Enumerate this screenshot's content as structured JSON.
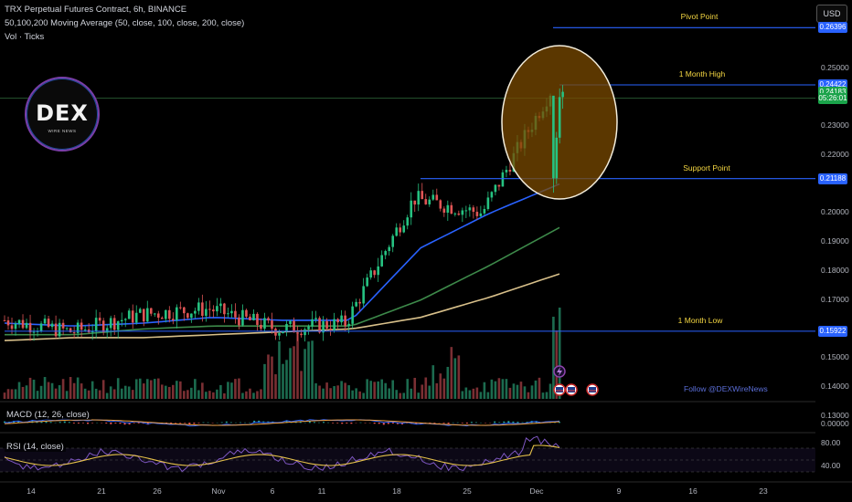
{
  "header": {
    "title": "TRX Perpetual Futures Contract, 6h, BINANCE",
    "indicator": "50,100,200 Moving Average (50, close, 100, close, 200, close)",
    "volume": "Vol · Ticks"
  },
  "currency_button": "USD",
  "logo": {
    "word": "DEX",
    "sub": "WIRE NEWS"
  },
  "follow_text": "Follow @DEXWireNews",
  "colors": {
    "bull": "#26c281",
    "bear": "#e05555",
    "ma50": "#2962ff",
    "ma100": "#3d8a4a",
    "ma200": "#d8c08a",
    "level_line": "#2962ff",
    "annotation": "#f5d742",
    "circle_fill": "#7a4a00",
    "price_tag": "#1aa34a"
  },
  "price_axis": {
    "ticks": [
      "0.25000",
      "0.23000",
      "0.22000",
      "0.20000",
      "0.19000",
      "0.18000",
      "0.17000",
      "0.15000",
      "0.14000",
      "0.13000"
    ],
    "tags": [
      {
        "label": "0.26396",
        "value": 0.26396,
        "color": "#2962ff"
      },
      {
        "label": "0.24422",
        "value": 0.24422,
        "color": "#2962ff"
      },
      {
        "label": "0.24183",
        "value": 0.24183,
        "color": "#1aa34a"
      },
      {
        "label": "05:26:01",
        "value": 0.2396,
        "color": "#1aa34a"
      },
      {
        "label": "0.21188",
        "value": 0.21188,
        "color": "#2962ff"
      },
      {
        "label": "0.15922",
        "value": 0.15922,
        "color": "#2962ff"
      }
    ]
  },
  "time_axis": [
    "14",
    "21",
    "26",
    "Nov",
    "6",
    "11",
    "18",
    "25",
    "Dec",
    "9",
    "16",
    "23"
  ],
  "panes": {
    "macd": {
      "label": "MACD (12, 26, close)",
      "ticks": [
        "0.00000"
      ]
    },
    "rsi": {
      "label": "RSI (14, close)",
      "ticks": [
        "80.00",
        "40.00"
      ]
    }
  },
  "annotations": [
    {
      "text": "Pivot Point",
      "value": 0.26396
    },
    {
      "text": "1 Month High",
      "value": 0.24422
    },
    {
      "text": "Support Point",
      "value": 0.21188
    },
    {
      "text": "1 Month Low",
      "value": 0.15922
    }
  ],
  "chart_data": {
    "type": "line",
    "title": "TRX Perpetual Futures Contract, 6h, BINANCE",
    "x": [
      "14",
      "21",
      "26",
      "Nov",
      "6",
      "11",
      "18",
      "25",
      "Dec"
    ],
    "series": [
      {
        "name": "close",
        "values": [
          0.163,
          0.159,
          0.165,
          0.167,
          0.16,
          0.162,
          0.205,
          0.2,
          0.242
        ]
      },
      {
        "name": "MA 50",
        "values": [
          0.162,
          0.161,
          0.162,
          0.164,
          0.163,
          0.163,
          0.188,
          0.2,
          0.21
        ]
      },
      {
        "name": "MA 100",
        "values": [
          0.158,
          0.158,
          0.16,
          0.161,
          0.161,
          0.161,
          0.17,
          0.182,
          0.195
        ]
      },
      {
        "name": "MA 200",
        "values": [
          0.156,
          0.157,
          0.157,
          0.158,
          0.159,
          0.16,
          0.164,
          0.171,
          0.179
        ]
      }
    ],
    "levels": [
      {
        "label": "Pivot Point",
        "value": 0.26396
      },
      {
        "label": "1 Month High",
        "value": 0.24422
      },
      {
        "label": "Support Point",
        "value": 0.21188
      },
      {
        "label": "1 Month Low",
        "value": 0.15922
      }
    ],
    "last_price": 0.24183,
    "ylim": [
      0.13,
      0.27
    ]
  }
}
